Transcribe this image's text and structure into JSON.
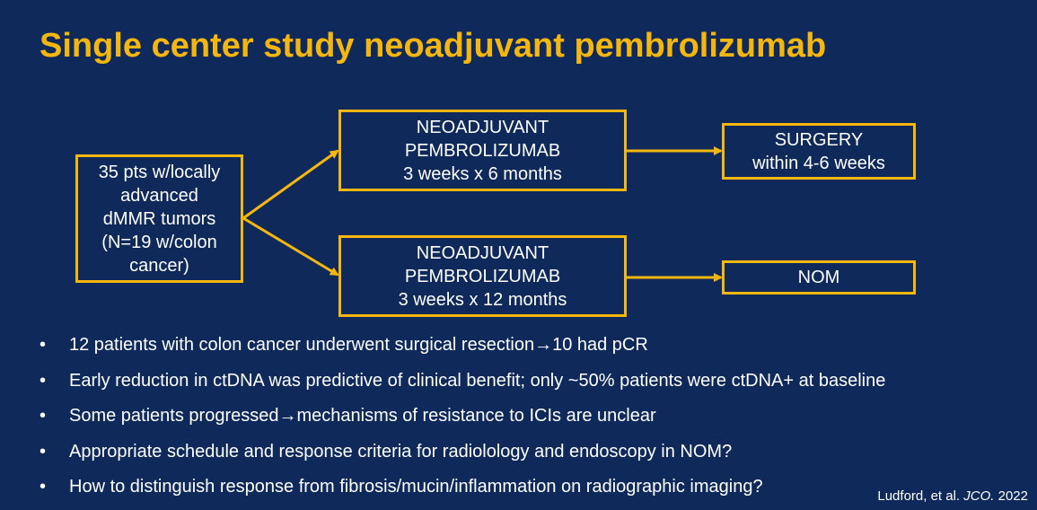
{
  "title": "Single center study neoadjuvant pembrolizumab",
  "diagram": {
    "start": {
      "lines": [
        "35 pts w/locally",
        "advanced",
        "dMMR tumors",
        "(N=19 w/colon",
        "cancer)"
      ]
    },
    "arm1": {
      "lines": [
        "NEOADJUVANT",
        "PEMBROLIZUMAB",
        "3 weeks x 6 months"
      ]
    },
    "arm1_outcome": {
      "lines": [
        "SURGERY",
        "within 4-6 weeks"
      ]
    },
    "arm2": {
      "lines": [
        "NEOADJUVANT",
        "PEMBROLIZUMAB",
        "3 weeks x 12 months"
      ]
    },
    "arm2_outcome": {
      "lines": [
        "NOM"
      ]
    }
  },
  "bullets": [
    "12 patients with colon cancer underwent surgical resection→10 had pCR",
    "Early reduction in ctDNA was predictive of clinical benefit; only ~50% patients were ctDNA+ at baseline",
    "Some patients progressed→mechanisms of resistance to ICIs are unclear",
    "Appropriate schedule and response criteria for radiolology and endoscopy in NOM?",
    "How to distinguish response from fibrosis/mucin/inflammation on radiographic imaging?"
  ],
  "citation": {
    "authors": "Ludford, et al.",
    "journal": "JCO.",
    "year": "2022"
  },
  "colors": {
    "background": "#0f2a5a",
    "accent": "#f5b70f",
    "text": "#ffffff"
  }
}
